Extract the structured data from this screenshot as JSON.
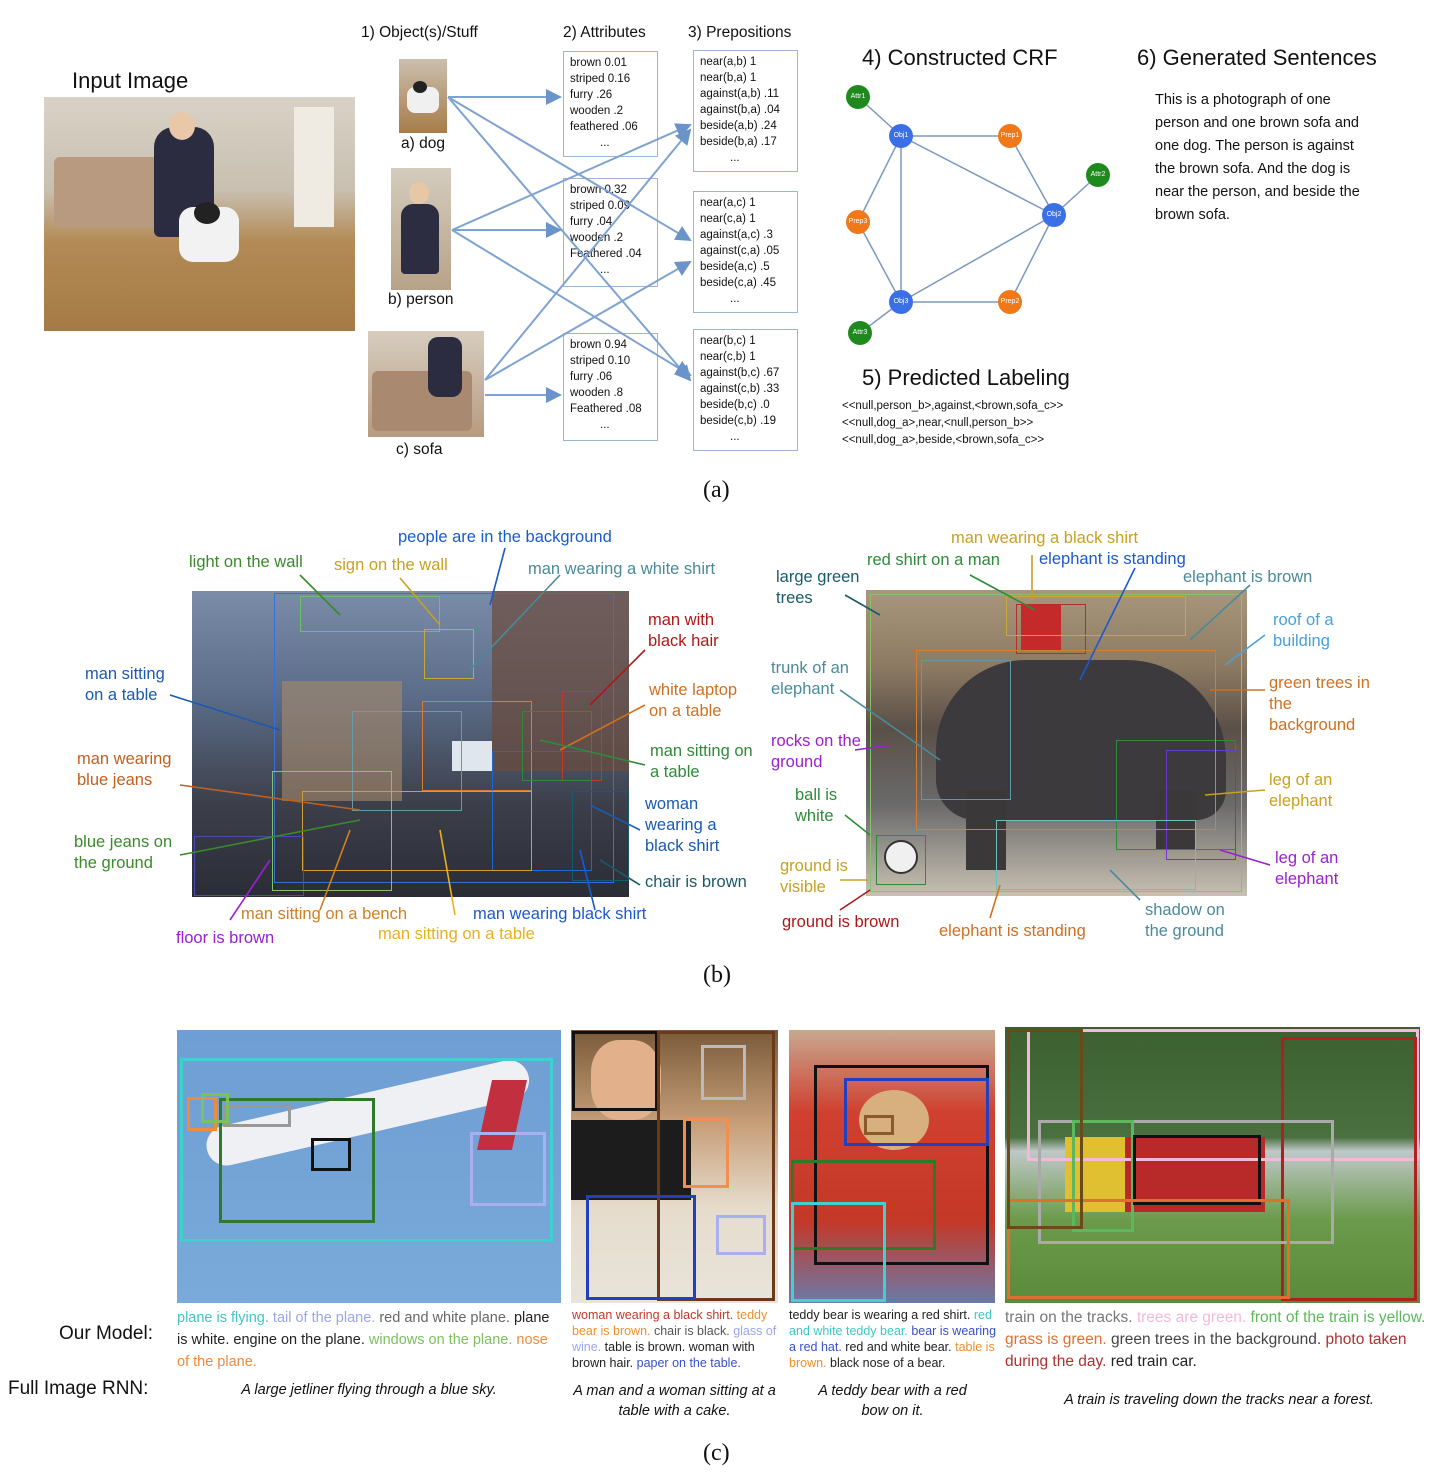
{
  "panel_a": {
    "input_image_title": "Input Image",
    "headers": {
      "objects": "1) Object(s)/Stuff",
      "attributes": "2) Attributes",
      "prepositions": "3) Prepositions",
      "crf": "4) Constructed CRF",
      "labeling": "5) Predicted Labeling",
      "sentences": "6) Generated Sentences"
    },
    "objects": [
      {
        "label": "a) dog"
      },
      {
        "label": "b) person"
      },
      {
        "label": "c) sofa"
      }
    ],
    "attribute_boxes": [
      [
        "brown 0.01",
        "striped 0.16",
        "furry .26",
        "wooden .2",
        "feathered .06",
        "..."
      ],
      [
        "brown 0.32",
        "striped 0.09",
        "furry .04",
        "wooden .2",
        "Feathered .04",
        "..."
      ],
      [
        "brown 0.94",
        "striped 0.10",
        "furry .06",
        "wooden .8",
        "Feathered .08",
        "..."
      ]
    ],
    "preposition_boxes": [
      [
        "near(a,b) 1",
        "near(b,a) 1",
        "against(a,b) .11",
        "against(b,a) .04",
        "beside(a,b) .24",
        "beside(b,a) .17",
        "..."
      ],
      [
        "near(a,c)  1",
        "near(c,a)  1",
        "against(a,c) .3",
        "against(c,a) .05",
        "beside(a,c) .5",
        "beside(c,a) .45",
        "..."
      ],
      [
        "near(b,c)  1",
        "near(c,b)  1",
        "against(b,c) .67",
        "against(c,b) .33",
        "beside(b,c) .0",
        "beside(c,b) .19",
        "..."
      ]
    ],
    "crf_nodes": {
      "attr1": "Attr1",
      "obj1": "Obj1",
      "prep1": "Prep1",
      "attr2": "Attr2",
      "obj2": "Obj2",
      "prep3": "Prep3",
      "obj3": "Obj3",
      "prep2": "Prep2",
      "attr3": "Attr3"
    },
    "crf_colors": {
      "attr": "#1e8a1e",
      "obj": "#3b6fe6",
      "prep": "#f07818"
    },
    "labeling_lines": [
      "<<null,person_b>,against,<brown,sofa_c>>",
      "<<null,dog_a>,near,<null,person_b>>",
      "<<null,dog_a>,beside,<brown,sofa_c>>"
    ],
    "generated_sentences": "This is a photograph of one person and one brown sofa and one dog. The person is against the brown sofa. And the dog is near the person, and beside the brown sofa.",
    "caption": "(a)"
  },
  "panel_b": {
    "left_labels": {
      "light_on_wall": "light on the wall",
      "sign_on_wall": "sign on the wall",
      "people_background": "people are in the background",
      "man_white_shirt": "man wearing a white shirt",
      "man_black_hair": "man with black hair",
      "white_laptop": "white laptop on a table",
      "man_sitting_table_r": "man sitting on a table",
      "woman_black_shirt": "woman wearing a black shirt",
      "chair_brown": "chair is brown",
      "man_black_shirt": "man wearing black shirt",
      "man_sitting_table_b": "man sitting on a table",
      "man_sitting_bench": "man sitting on a bench",
      "floor_brown": "floor is brown",
      "blue_jeans_ground": "blue jeans on the ground",
      "man_blue_jeans": "man wearing blue jeans",
      "man_sitting_on_table_l": "man sitting on a table"
    },
    "right_labels": {
      "man_black_shirt": "man wearing a black shirt",
      "red_shirt": "red shirt on a man",
      "elephant_standing_top": "elephant is standing",
      "large_trees": "large green trees",
      "elephant_brown": "elephant is brown",
      "roof": "roof of a building",
      "trunk": "trunk of an elephant",
      "green_trees_bg": "green trees in the background",
      "rocks": "rocks on the ground",
      "leg1": "leg of an elephant",
      "ball": "ball is white",
      "leg2": "leg of an elephant",
      "ground_visible": "ground is visible",
      "ground_brown": "ground is brown",
      "elephant_standing_bottom": "elephant is standing",
      "shadow": "shadow on the ground"
    },
    "caption": "(b)"
  },
  "panel_c": {
    "row_labels": {
      "our_model": "Our Model:",
      "full_rnn": "Full Image RNN:"
    },
    "columns": [
      {
        "our_model": [
          {
            "text": "plane is flying.",
            "color": "#3fc6c6"
          },
          {
            "text": "tail of the plane.",
            "color": "#9aa6ee"
          },
          {
            "text": "red and white plane.",
            "color": "#666666"
          },
          {
            "text": "plane is white.",
            "color": "#222222"
          },
          {
            "text": "engine on the plane.",
            "color": "#222222"
          },
          {
            "text": "windows on the plane.",
            "color": "#7cc060"
          },
          {
            "text": "nose of the plane.",
            "color": "#f08a3c"
          }
        ],
        "rnn": "A large jetliner flying through a blue sky."
      },
      {
        "our_model": [
          {
            "text": "woman wearing a black shirt.",
            "color": "#c0392b"
          },
          {
            "text": "teddy bear is brown.",
            "color": "#f0902c"
          },
          {
            "text": "chair is black.",
            "color": "#555555"
          },
          {
            "text": "glass of wine.",
            "color": "#9aa6ee"
          },
          {
            "text": "table is brown.",
            "color": "#222222"
          },
          {
            "text": "woman with brown hair.",
            "color": "#222222"
          },
          {
            "text": "paper on the table.",
            "color": "#3850c8"
          }
        ],
        "rnn": "A man and a woman sitting at a table with a cake."
      },
      {
        "our_model": [
          {
            "text": "teddy bear is wearing a red shirt.",
            "color": "#222222"
          },
          {
            "text": "red and white teddy bear.",
            "color": "#3fc6c6"
          },
          {
            "text": "bear is wearing a red hat.",
            "color": "#3850c8"
          },
          {
            "text": "red and white bear.",
            "color": "#222222"
          },
          {
            "text": "table is brown.",
            "color": "#f0902c"
          },
          {
            "text": "black nose of a bear.",
            "color": "#222222"
          }
        ],
        "rnn": "A teddy bear with a red bow on it."
      },
      {
        "our_model": [
          {
            "text": "train on the tracks.",
            "color": "#777777"
          },
          {
            "text": "trees are green.",
            "color": "#f4b8d8"
          },
          {
            "text": "front of the train is yellow.",
            "color": "#5cb85c"
          },
          {
            "text": "grass is green.",
            "color": "#e07030"
          },
          {
            "text": "green trees in the background.",
            "color": "#444444"
          },
          {
            "text": "photo taken during the day.",
            "color": "#b03030"
          },
          {
            "text": "red train car.",
            "color": "#222222"
          }
        ],
        "rnn": "A train is traveling down the tracks near a forest."
      }
    ],
    "caption": "(c)"
  }
}
